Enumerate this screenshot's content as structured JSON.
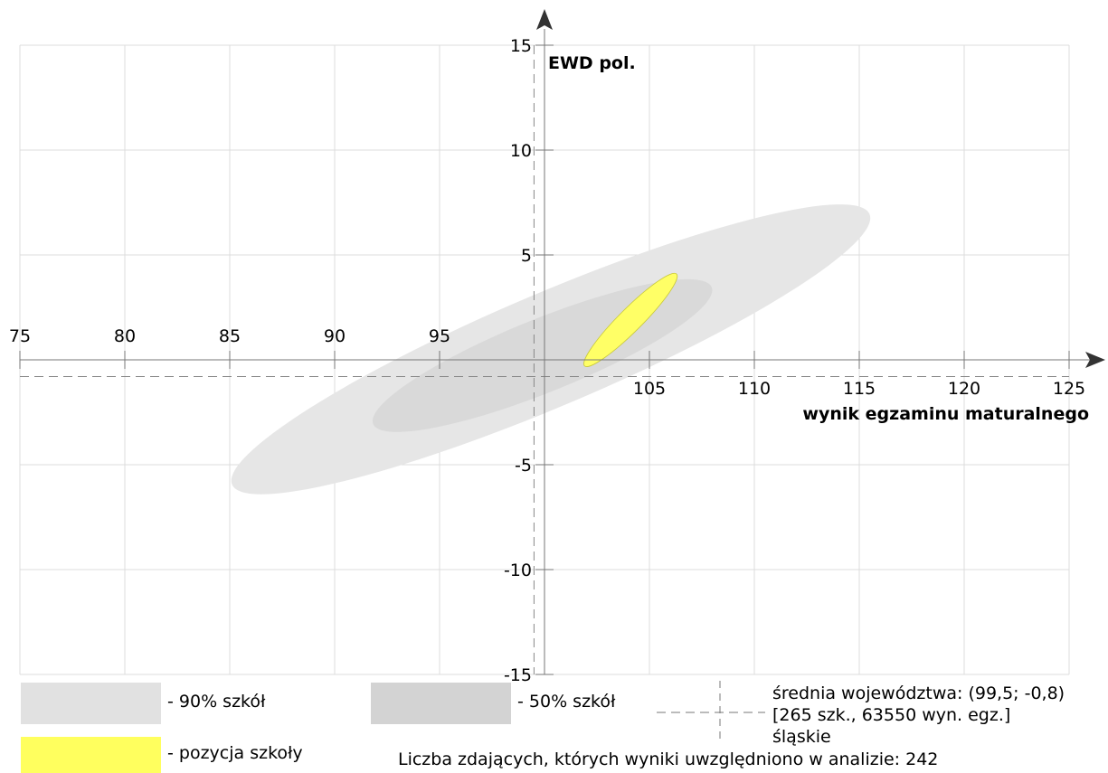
{
  "chart_data": {
    "type": "scatter",
    "title": "",
    "xlabel": "wynik egzaminu maturalnego",
    "ylabel": "EWD pol.",
    "xlim": [
      75,
      125
    ],
    "ylim": [
      -15,
      15
    ],
    "x_ticks": [
      75,
      80,
      85,
      90,
      95,
      105,
      110,
      115,
      120,
      125
    ],
    "x_tick_labels": [
      "75",
      "80",
      "85",
      "90",
      "95",
      "105",
      "110",
      "115",
      "120",
      "125"
    ],
    "y_ticks": [
      15,
      10,
      5,
      -5,
      -10,
      -15
    ],
    "y_tick_labels": [
      "15",
      "10",
      "5",
      "-5",
      "-10",
      "-15"
    ],
    "grid": true,
    "origin": [
      100,
      0
    ],
    "reference_point": {
      "x": 99.5,
      "y": -0.8
    },
    "regions": [
      {
        "name": "90% szkół",
        "color": "#e6e6e6",
        "cx": 100.3,
        "cy": 0.5,
        "rx": 16.5,
        "ry": 2.7,
        "angle_deg": 23
      },
      {
        "name": "50% szkół",
        "color": "#d9d9d9",
        "cx": 99.9,
        "cy": 0.2,
        "rx": 8.7,
        "ry": 1.75,
        "angle_deg": 22
      },
      {
        "name": "pozycja szkoły",
        "color": "#ffff66",
        "cx": 104.1,
        "cy": 1.9,
        "rx": 3.1,
        "ry": 0.55,
        "angle_deg": 45
      }
    ]
  },
  "legend": {
    "items": [
      {
        "label": "- 90% szkół",
        "color": "#e1e1e1"
      },
      {
        "label": "- 50% szkół",
        "color": "#d3d3d3"
      },
      {
        "label": "- pozycja szkoły",
        "color": "#ffff5e"
      }
    ],
    "mean_lines": [
      "średnia województwa: (99,5; -0,8)",
      "[265 szk., 63550 wyn. egz.]",
      "śląskie"
    ],
    "count_text": "Liczba zdających, których wyniki uwzględniono w analizie: 242"
  }
}
